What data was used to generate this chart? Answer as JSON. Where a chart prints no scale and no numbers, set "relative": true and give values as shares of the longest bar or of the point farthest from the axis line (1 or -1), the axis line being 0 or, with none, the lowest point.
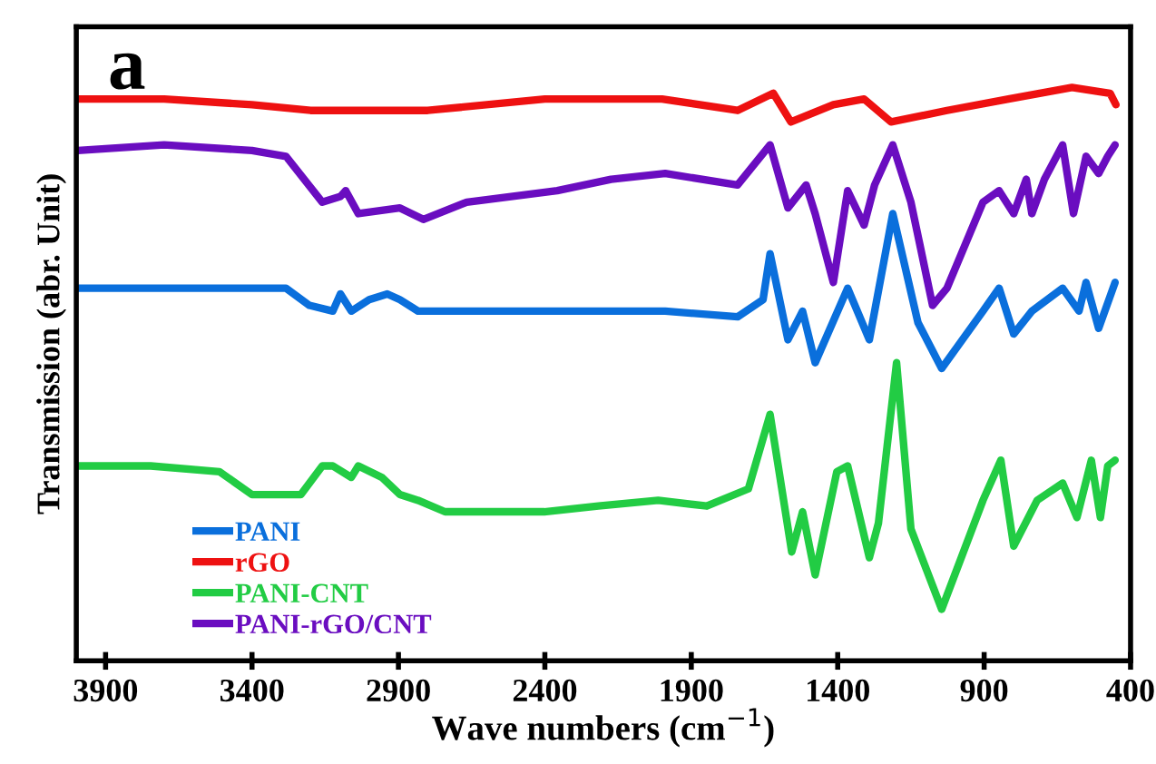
{
  "chart_data": {
    "type": "line",
    "relative": true,
    "xlabel": "Wave numbers (cm$^{−1}$)",
    "ylabel": "Transmission (abr. Unit)",
    "annotations": [
      "a"
    ],
    "xlim": [
      4000,
      400
    ],
    "xticks": [
      3900,
      3400,
      2900,
      2400,
      1900,
      1400,
      900,
      400
    ],
    "grid": false,
    "legend": "bottom left",
    "marker": "none",
    "line_style": "solid",
    "series": [
      {
        "name": "PANI",
        "color": "#0a6fdc",
        "x": [
          3995,
          3284,
          3204,
          3124,
          3098,
          3061,
          3000,
          2938,
          2895,
          2833,
          2667,
          2155,
          1989,
          1742,
          1655,
          1631,
          1570,
          1520,
          1477,
          1366,
          1292,
          1212,
          1126,
          1045,
          904,
          849,
          799,
          737,
          632,
          576,
          552,
          509,
          453
        ],
        "values": [
          0.65,
          0.65,
          0.62,
          0.61,
          0.64,
          0.61,
          0.63,
          0.64,
          0.63,
          0.61,
          0.61,
          0.61,
          0.61,
          0.6,
          0.63,
          0.71,
          0.56,
          0.61,
          0.52,
          0.65,
          0.56,
          0.78,
          0.59,
          0.51,
          0.61,
          0.65,
          0.57,
          0.61,
          0.65,
          0.61,
          0.66,
          0.58,
          0.66
        ]
      },
      {
        "name": "rGO",
        "color": "#ee1111",
        "x": [
          3995,
          3700,
          3400,
          3200,
          2800,
          2400,
          2000,
          1742,
          1620,
          1560,
          1415,
          1310,
          1218,
          1027,
          817,
          600,
          470,
          450
        ],
        "values": [
          0.98,
          0.98,
          0.97,
          0.96,
          0.96,
          0.98,
          0.98,
          0.96,
          0.99,
          0.94,
          0.97,
          0.98,
          0.94,
          0.96,
          0.98,
          1.0,
          0.99,
          0.97
        ]
      },
      {
        "name": "PANI-CNT",
        "color": "#22cc44",
        "x": [
          3995,
          3746,
          3511,
          3400,
          3233,
          3160,
          3124,
          3061,
          3037,
          2956,
          2895,
          2833,
          2741,
          2402,
          2217,
          2013,
          1847,
          1705,
          1631,
          1557,
          1520,
          1477,
          1403,
          1366,
          1292,
          1261,
          1199,
          1150,
          1045,
          904,
          843,
          799,
          719,
          632,
          583,
          534,
          503,
          478,
          453
        ],
        "values": [
          0.34,
          0.34,
          0.33,
          0.29,
          0.29,
          0.34,
          0.34,
          0.32,
          0.34,
          0.32,
          0.29,
          0.28,
          0.26,
          0.26,
          0.27,
          0.28,
          0.27,
          0.3,
          0.43,
          0.19,
          0.26,
          0.15,
          0.33,
          0.34,
          0.18,
          0.24,
          0.52,
          0.23,
          0.09,
          0.28,
          0.35,
          0.2,
          0.28,
          0.31,
          0.25,
          0.35,
          0.25,
          0.34,
          0.35
        ]
      },
      {
        "name": "PANI-rGO/CNT",
        "color": "#6a0dc0",
        "x": [
          3995,
          3700,
          3400,
          3284,
          3160,
          3098,
          3080,
          3037,
          2895,
          2815,
          2667,
          2358,
          2174,
          1989,
          1742,
          1631,
          1570,
          1508,
          1477,
          1415,
          1366,
          1310,
          1274,
          1212,
          1150,
          1076,
          1027,
          904,
          849,
          799,
          756,
          737,
          694,
          632,
          595,
          552,
          509,
          478,
          453
        ],
        "values": [
          0.89,
          0.9,
          0.89,
          0.88,
          0.8,
          0.81,
          0.82,
          0.78,
          0.79,
          0.77,
          0.8,
          0.82,
          0.84,
          0.85,
          0.83,
          0.9,
          0.79,
          0.83,
          0.78,
          0.66,
          0.82,
          0.76,
          0.83,
          0.9,
          0.8,
          0.62,
          0.65,
          0.8,
          0.82,
          0.78,
          0.84,
          0.78,
          0.84,
          0.9,
          0.78,
          0.88,
          0.85,
          0.88,
          0.9
        ]
      }
    ]
  }
}
